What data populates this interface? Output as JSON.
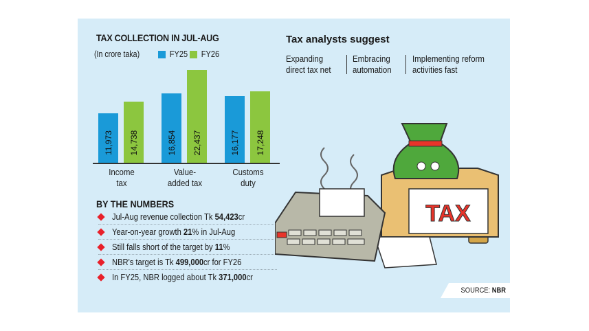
{
  "chart_data": {
    "type": "bar",
    "title": "TAX COLLECTION IN JUL-AUG",
    "subtitle": "(In crore taka)",
    "categories": [
      "Income tax",
      "Value-added tax",
      "Customs duty"
    ],
    "series": [
      {
        "name": "FY25",
        "color": "#1a9ad8",
        "values": [
          11973,
          16854,
          16177
        ],
        "labels": [
          "11,973",
          "16,854",
          "16,177"
        ]
      },
      {
        "name": "FY26",
        "color": "#8cc63f",
        "values": [
          14738,
          22437,
          17248
        ],
        "labels": [
          "14,738",
          "22,437",
          "17,248"
        ]
      }
    ],
    "xlabel": "",
    "ylabel": "",
    "legend_position": "top",
    "grid": false
  },
  "chart": {
    "title": "TAX COLLECTION IN JUL-AUG",
    "unit": "(In crore taka)",
    "legend": [
      {
        "label": "FY25",
        "color": "#1a9ad8"
      },
      {
        "label": "FY26",
        "color": "#8cc63f"
      }
    ],
    "categories": [
      {
        "line1": "Income",
        "line2": "tax"
      },
      {
        "line1": "Value-",
        "line2": "added tax"
      },
      {
        "line1": "Customs",
        "line2": "duty"
      }
    ]
  },
  "numbers": {
    "title": "BY THE NUMBERS",
    "items": [
      {
        "pre": "Jul-Aug revenue collection Tk ",
        "bold": "54,423",
        "post": "cr"
      },
      {
        "pre": "Year-on-year growth ",
        "bold": "21",
        "post": "% in Jul-Aug"
      },
      {
        "pre": "Still falls short of the target by ",
        "bold": "11",
        "post": "%"
      },
      {
        "pre": "NBR's target is Tk ",
        "bold": "499,000",
        "post": "cr for FY26"
      },
      {
        "pre": "In FY25, NBR logged about Tk ",
        "bold": "371,000",
        "post": "cr"
      }
    ]
  },
  "analysts": {
    "title": "Tax analysts suggest",
    "items": [
      {
        "line1": "Expanding",
        "line2": "direct tax net"
      },
      {
        "line1": "Embracing",
        "line2": "automation"
      },
      {
        "line1": "Implementing reform",
        "line2": "activities fast"
      }
    ]
  },
  "illustration": {
    "box_label": "TAX",
    "icons": [
      "calculator-icon",
      "money-bag-icon",
      "tax-box-icon",
      "coin-stack-icon",
      "receipt-icon"
    ]
  },
  "source": {
    "label": "SOURCE: ",
    "value": "NBR"
  }
}
